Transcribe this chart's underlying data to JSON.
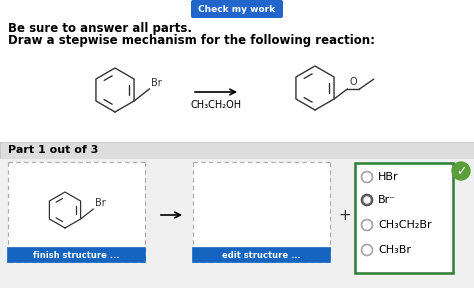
{
  "bg_color": "#ffffff",
  "top_button_color": "#2266cc",
  "top_button_text": "Check my work",
  "top_button_text_color": "#ffffff",
  "line1": "Be sure to answer all parts.",
  "line2": "Draw a stepwise mechanism for the following reaction:",
  "part_label": "Part 1 out of 3",
  "part_bg": "#dddddd",
  "reagent_label": "CH₃CH₂OH",
  "finish_btn_text": "finish structure ...",
  "edit_btn_text": "edit structure ...",
  "plus_sign": "+",
  "radio_options": [
    "HBr",
    "Br⁻",
    "CH₃CH₂Br",
    "CH₃Br"
  ],
  "radio_selected": 1,
  "answer_box_color": "#2e7d32",
  "check_icon_color": "#5a9e3a",
  "dashed_box_color": "#aaaaaa",
  "finish_btn_color": "#1565c0",
  "edit_btn_color": "#1565c0",
  "font_size_title": 8.5,
  "font_size_part": 8,
  "font_size_radio": 8
}
